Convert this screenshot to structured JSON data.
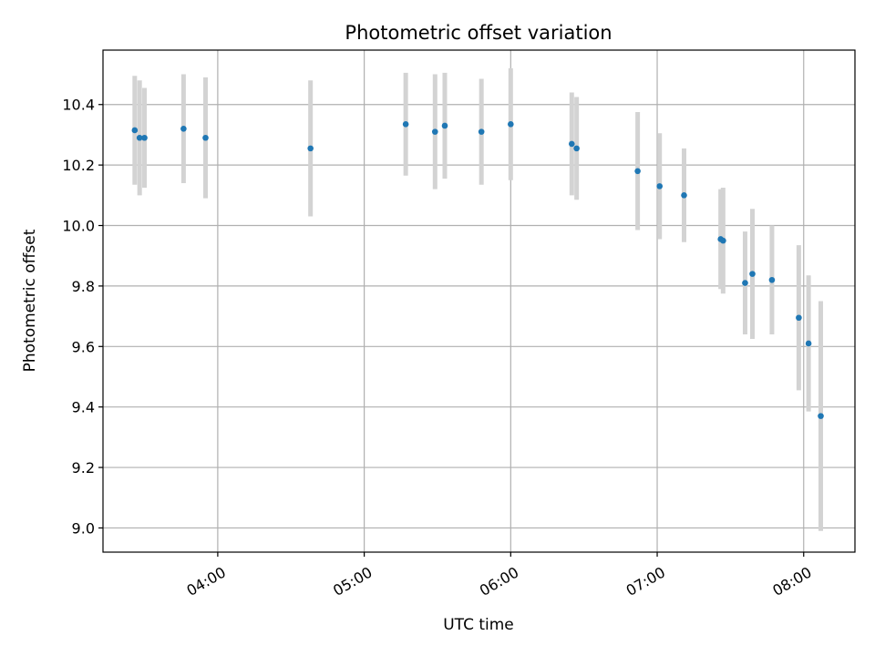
{
  "chart_data": {
    "type": "scatter",
    "title": "Photometric offset variation",
    "xlabel": "UTC time",
    "ylabel": "Photometric offset",
    "x_is_time": true,
    "xlim": [
      "03:13",
      "08:21"
    ],
    "ylim": [
      8.92,
      10.58
    ],
    "x_ticks": [
      "04:00",
      "05:00",
      "06:00",
      "07:00",
      "08:00"
    ],
    "y_ticks": [
      9.0,
      9.2,
      9.4,
      9.6,
      9.8,
      10.0,
      10.2,
      10.4
    ],
    "y_tick_labels": [
      "9.0",
      "9.2",
      "9.4",
      "9.6",
      "9.8",
      "10.0",
      "10.2",
      "10.4"
    ],
    "grid": true,
    "series": [
      {
        "marker_color": "#1f77b4",
        "errorbar_color": "#d3d3d3",
        "points": [
          {
            "x": "03:26",
            "y": 10.315,
            "err": 0.18
          },
          {
            "x": "03:28",
            "y": 10.29,
            "err": 0.19
          },
          {
            "x": "03:30",
            "y": 10.29,
            "err": 0.165
          },
          {
            "x": "03:46",
            "y": 10.32,
            "err": 0.18
          },
          {
            "x": "03:55",
            "y": 10.29,
            "err": 0.2
          },
          {
            "x": "04:38",
            "y": 10.255,
            "err": 0.225
          },
          {
            "x": "05:17",
            "y": 10.335,
            "err": 0.17
          },
          {
            "x": "05:29",
            "y": 10.31,
            "err": 0.19
          },
          {
            "x": "05:33",
            "y": 10.33,
            "err": 0.175
          },
          {
            "x": "05:48",
            "y": 10.31,
            "err": 0.175
          },
          {
            "x": "06:00",
            "y": 10.335,
            "err": 0.185
          },
          {
            "x": "06:25",
            "y": 10.27,
            "err": 0.17
          },
          {
            "x": "06:27",
            "y": 10.255,
            "err": 0.17
          },
          {
            "x": "06:52",
            "y": 10.18,
            "err": 0.195
          },
          {
            "x": "07:01",
            "y": 10.13,
            "err": 0.175
          },
          {
            "x": "07:11",
            "y": 10.1,
            "err": 0.155
          },
          {
            "x": "07:26",
            "y": 9.955,
            "err": 0.165
          },
          {
            "x": "07:27",
            "y": 9.95,
            "err": 0.175
          },
          {
            "x": "07:36",
            "y": 9.81,
            "err": 0.17
          },
          {
            "x": "07:39",
            "y": 9.84,
            "err": 0.215
          },
          {
            "x": "07:47",
            "y": 9.82,
            "err": 0.18
          },
          {
            "x": "07:58",
            "y": 9.695,
            "err": 0.24
          },
          {
            "x": "08:02",
            "y": 9.61,
            "err": 0.225
          },
          {
            "x": "08:07",
            "y": 9.37,
            "err": 0.38
          }
        ]
      }
    ]
  }
}
